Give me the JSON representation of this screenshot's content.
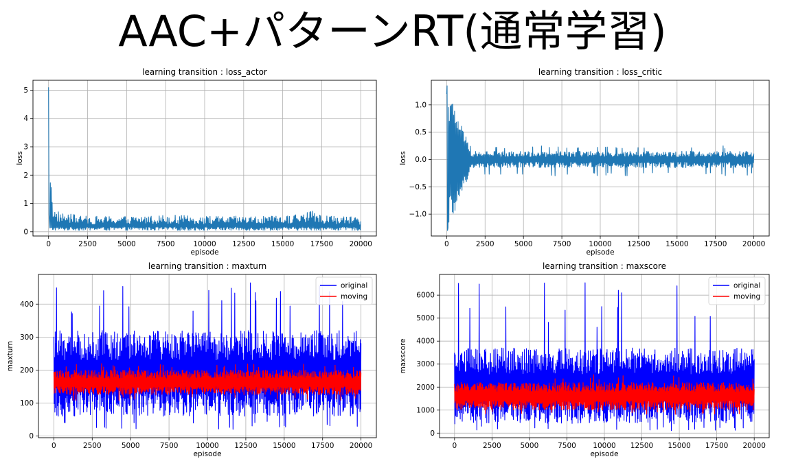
{
  "slide_title": "AAC+パターンRT(通常学習)",
  "charts": [
    {
      "id": "loss-actor",
      "title": "learning transition : loss_actor",
      "xlabel": "episode",
      "ylabel": "loss",
      "type": "line",
      "xlim": [
        -1000,
        21000
      ],
      "ylim": [
        -0.15,
        5.35
      ],
      "xticks": [
        0,
        2500,
        5000,
        7500,
        10000,
        12500,
        15000,
        17500,
        20000
      ],
      "xtick_labels": [
        "0",
        "2500",
        "5000",
        "7500",
        "10000",
        "12500",
        "15000",
        "17500",
        "20000"
      ],
      "yticks": [
        0,
        1,
        2,
        3,
        4,
        5
      ],
      "ytick_labels": [
        "0",
        "1",
        "2",
        "3",
        "4",
        "5"
      ],
      "grid": true,
      "legend": null,
      "series": [
        {
          "color": "#1f77b4",
          "x_range": [
            0,
            20000
          ],
          "initial_spike": [
            0,
            5.1
          ],
          "upper_envelope_x": [
            0,
            300,
            1000,
            2500,
            5000,
            7500,
            10000,
            12500,
            15000,
            17000,
            17500,
            20000
          ],
          "upper_envelope_y": [
            5.1,
            0.8,
            0.65,
            0.55,
            0.55,
            0.6,
            0.55,
            0.55,
            0.55,
            0.75,
            0.6,
            0.5
          ],
          "lower_envelope_y": 0.05,
          "typical_band": [
            0.1,
            0.45
          ]
        }
      ]
    },
    {
      "id": "loss-critic",
      "title": "learning transition : loss_critic",
      "xlabel": "episode",
      "ylabel": "loss",
      "type": "line",
      "xlim": [
        -1000,
        21000
      ],
      "ylim": [
        -1.4,
        1.45
      ],
      "xticks": [
        0,
        2500,
        5000,
        7500,
        10000,
        12500,
        15000,
        17500,
        20000
      ],
      "xtick_labels": [
        "0",
        "2500",
        "5000",
        "7500",
        "10000",
        "12500",
        "15000",
        "17500",
        "20000"
      ],
      "yticks": [
        -1.0,
        -0.5,
        0.0,
        0.5,
        1.0
      ],
      "ytick_labels": [
        "−1.0",
        "−0.5",
        "0.0",
        "0.5",
        "1.0"
      ],
      "grid": true,
      "legend": null,
      "series": [
        {
          "color": "#1f77b4",
          "x_range": [
            0,
            20000
          ],
          "early_extremes": {
            "max": 1.35,
            "min": -1.3,
            "settle_by": 1500
          },
          "steady_band": [
            -0.3,
            0.25
          ],
          "typical_band": [
            -0.15,
            0.15
          ]
        }
      ]
    },
    {
      "id": "maxturn",
      "title": "learning transition : maxturn",
      "xlabel": "episode",
      "ylabel": "maxturn",
      "type": "line",
      "xlim": [
        -1000,
        21000
      ],
      "ylim": [
        -5,
        490
      ],
      "xticks": [
        0,
        2500,
        5000,
        7500,
        10000,
        12500,
        15000,
        17500,
        20000
      ],
      "xtick_labels": [
        "0",
        "2500",
        "5000",
        "7500",
        "10000",
        "12500",
        "15000",
        "17500",
        "20000"
      ],
      "yticks": [
        0,
        100,
        200,
        300,
        400
      ],
      "ytick_labels": [
        "0",
        "100",
        "200",
        "300",
        "400"
      ],
      "grid": true,
      "legend": {
        "position": "top-right",
        "entries": [
          "original",
          "moving"
        ]
      },
      "series": [
        {
          "name": "original",
          "color": "#0000ff",
          "x_range": [
            0,
            20000
          ],
          "typical_band": [
            60,
            320
          ],
          "peak_max": 475,
          "low_min": 20
        },
        {
          "name": "moving",
          "color": "#ff0000",
          "x_range": [
            0,
            20000
          ],
          "typical_band": [
            125,
            200
          ],
          "peak_max": 220,
          "low_min": 105
        }
      ]
    },
    {
      "id": "maxscore",
      "title": "learning transition : maxscore",
      "xlabel": "episode",
      "ylabel": "maxscore",
      "type": "line",
      "xlim": [
        -1000,
        21000
      ],
      "ylim": [
        -200,
        6900
      ],
      "xticks": [
        0,
        2500,
        5000,
        7500,
        10000,
        12500,
        15000,
        17500,
        20000
      ],
      "xtick_labels": [
        "0",
        "2500",
        "5000",
        "7500",
        "10000",
        "12500",
        "15000",
        "17500",
        "20000"
      ],
      "yticks": [
        0,
        1000,
        2000,
        3000,
        4000,
        5000,
        6000
      ],
      "ytick_labels": [
        "0",
        "1000",
        "2000",
        "3000",
        "4000",
        "5000",
        "6000"
      ],
      "grid": true,
      "legend": {
        "position": "top-right",
        "entries": [
          "original",
          "moving"
        ]
      },
      "series": [
        {
          "name": "original",
          "color": "#0000ff",
          "x_range": [
            0,
            20000
          ],
          "typical_band": [
            400,
            3700
          ],
          "peak_max": 6600,
          "low_min": 100
        },
        {
          "name": "moving",
          "color": "#ff0000",
          "x_range": [
            0,
            20000
          ],
          "typical_band": [
            1000,
            2200
          ],
          "peak_max": 2600,
          "low_min": 800
        }
      ]
    }
  ]
}
